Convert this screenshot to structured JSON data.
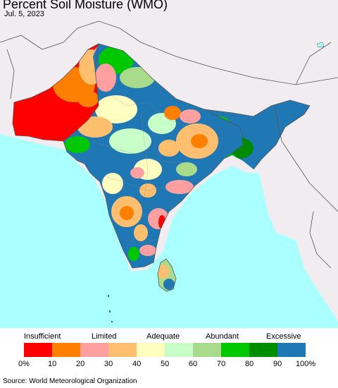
{
  "header": {
    "title": "Percent Soil Moisture (WMO)",
    "date": "Jul. 5, 2023"
  },
  "legend": {
    "category_labels": [
      "Insufficient",
      "Limited",
      "Adequate",
      "Abundant",
      "Excessive"
    ],
    "colors": [
      "#ff0000",
      "#ff7f00",
      "#ff9f9f",
      "#ffbf6f",
      "#ffffbf",
      "#c8ffc8",
      "#a8dc8c",
      "#00c800",
      "#008c00",
      "#1f78b4"
    ],
    "ticks": [
      "0%",
      "10",
      "20",
      "30",
      "40",
      "50",
      "60",
      "70",
      "80",
      "90",
      "100%"
    ]
  },
  "map": {
    "colors": {
      "ocean": "#aaffff",
      "land_no_data": "#f0ecf0",
      "borders": "#555555"
    }
  },
  "footer": {
    "source": "Source: World Meteorological Organization"
  }
}
